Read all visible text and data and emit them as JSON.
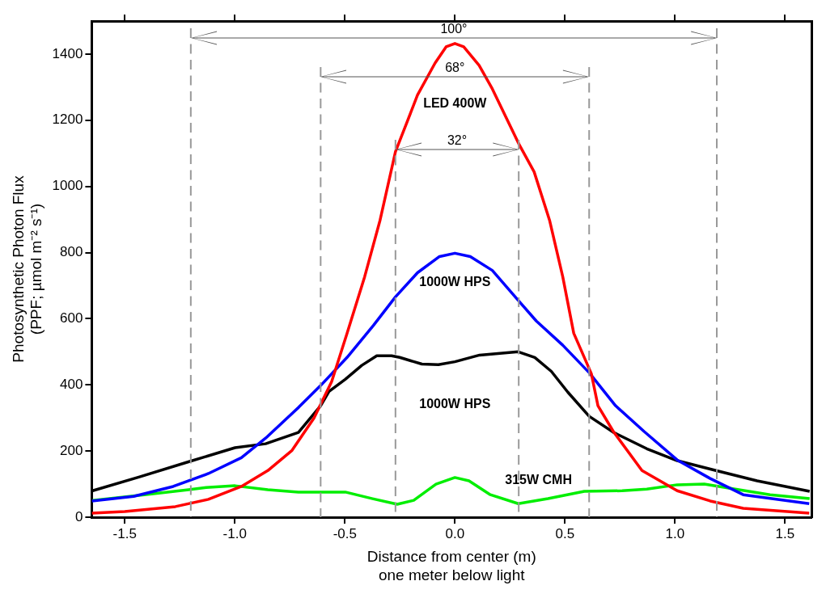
{
  "chart_data": {
    "type": "line",
    "xlabel": "Distance from center (m)\none meter below light",
    "ylabel": "Photosynthetic Photon Flux\n(PPF; µmol m⁻² s⁻¹)",
    "xlim": [
      -1.65,
      1.62
    ],
    "ylim": [
      0,
      1500
    ],
    "xticks": [
      {
        "value": -1.5,
        "label": "-1.5"
      },
      {
        "value": -1,
        "label": "-1.0"
      },
      {
        "value": -0.5,
        "label": "-0.5"
      },
      {
        "value": 0,
        "label": "0.0"
      },
      {
        "value": 0.5,
        "label": "0.5"
      },
      {
        "value": 1,
        "label": "1.0"
      },
      {
        "value": 1.5,
        "label": "1.5"
      }
    ],
    "yticks": [
      0,
      200,
      400,
      600,
      800,
      1000,
      1200,
      1400
    ],
    "grid": false,
    "legend": false,
    "marker": "none",
    "line_style": "solid",
    "series": [
      {
        "name": "LED 400W",
        "color": "#ff0000",
        "x": [
          -1.65,
          -1.5,
          -1.27,
          -1.12,
          -0.97,
          -0.85,
          -0.74,
          -0.64,
          -0.56,
          -0.49,
          -0.41,
          -0.34,
          -0.27,
          -0.22,
          -0.17,
          -0.09,
          -0.04,
          0,
          0.04,
          0.11,
          0.17,
          0.29,
          0.36,
          0.43,
          0.49,
          0.54,
          0.62,
          0.65,
          0.72,
          0.85,
          1.01,
          1.16,
          1.31,
          1.61
        ],
        "values": [
          12,
          17,
          32,
          54,
          93,
          141,
          202,
          300,
          410,
          556,
          727,
          898,
          1105,
          1190,
          1276,
          1373,
          1422,
          1432,
          1422,
          1366,
          1295,
          1129,
          1044,
          898,
          727,
          556,
          434,
          337,
          259,
          141,
          80,
          49,
          27,
          12
        ]
      },
      {
        "name": "1000W HPS",
        "color": "#0000ff",
        "x": [
          -1.65,
          -1.46,
          -1.28,
          -1.12,
          -0.97,
          -0.86,
          -0.71,
          -0.61,
          -0.49,
          -0.37,
          -0.27,
          -0.17,
          -0.07,
          0,
          0.07,
          0.17,
          0.29,
          0.37,
          0.49,
          0.61,
          0.73,
          0.86,
          1.01,
          1.16,
          1.31,
          1.61
        ],
        "values": [
          49,
          63,
          93,
          132,
          180,
          239,
          332,
          398,
          483,
          580,
          666,
          739,
          788,
          798,
          788,
          746,
          654,
          593,
          520,
          437,
          337,
          259,
          173,
          117,
          68,
          41
        ]
      },
      {
        "name": "1000W HPS",
        "color": "#000000",
        "x": [
          -1.646,
          -1.433,
          -1.208,
          -0.999,
          -0.86,
          -0.711,
          -0.61,
          -0.572,
          -0.498,
          -0.423,
          -0.355,
          -0.288,
          -0.251,
          -0.15,
          -0.075,
          0,
          0.112,
          0.288,
          0.363,
          0.438,
          0.513,
          0.61,
          0.722,
          0.872,
          1.01,
          1.186,
          1.373,
          1.612
        ],
        "values": [
          80,
          122,
          168,
          210,
          222,
          256,
          337,
          380,
          417,
          459,
          488,
          488,
          483,
          463,
          461,
          470,
          490,
          500,
          483,
          441,
          378,
          305,
          256,
          207,
          171,
          141,
          110,
          78
        ]
      },
      {
        "name": "315W CMH",
        "color": "#00ee00",
        "x": [
          -1.646,
          -1.41,
          -1.21,
          -1.13,
          -0.999,
          -0.85,
          -0.711,
          -0.498,
          -0.374,
          -0.262,
          -0.187,
          -0.086,
          0,
          0.064,
          0.161,
          0.288,
          0.423,
          0.588,
          0.76,
          0.872,
          1.01,
          1.133,
          1.245,
          1.432,
          1.612
        ],
        "values": [
          51,
          68,
          83,
          90,
          95,
          83,
          76,
          76,
          56,
          39,
          51,
          100,
          120,
          110,
          68,
          41,
          56,
          78,
          80,
          85,
          98,
          100,
          88,
          68,
          56
        ]
      }
    ],
    "ref_lines": [
      {
        "axis": "x",
        "value": -1.2,
        "color": "#999999",
        "line_style": "dashed"
      },
      {
        "axis": "x",
        "value": -0.61,
        "color": "#999999",
        "line_style": "dashed"
      },
      {
        "axis": "x",
        "value": -0.27,
        "color": "#999999",
        "line_style": "dashed"
      },
      {
        "axis": "x",
        "value": 0.29,
        "color": "#999999",
        "line_style": "dashed"
      },
      {
        "axis": "x",
        "value": 0.61,
        "color": "#999999",
        "line_style": "dashed"
      },
      {
        "axis": "x",
        "value": 1.19,
        "color": "#999999",
        "line_style": "dashed"
      }
    ],
    "annotations": [
      "100°",
      "68°",
      "32°"
    ]
  }
}
